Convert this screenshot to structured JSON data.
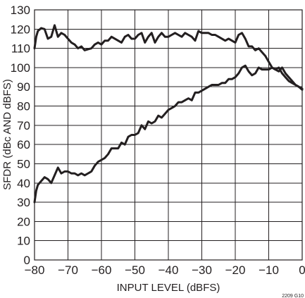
{
  "chart_data": {
    "type": "line",
    "title": "",
    "xlabel": "INPUT LEVEL (dBFS)",
    "ylabel": "SFDR (dBc AND  dBFS)",
    "xlim": [
      -80,
      0
    ],
    "ylim": [
      0,
      130
    ],
    "x_ticks": [
      -80,
      -70,
      -60,
      -50,
      -40,
      -30,
      -20,
      -10,
      0
    ],
    "x_tick_labels": [
      "−80",
      "−70",
      "−60",
      "−50",
      "−40",
      "−30",
      "−20",
      "−10",
      "0"
    ],
    "y_ticks": [
      0,
      10,
      20,
      30,
      40,
      50,
      60,
      70,
      80,
      90,
      100,
      110,
      120,
      130
    ],
    "y_tick_labels": [
      "0",
      "10",
      "20",
      "30",
      "40",
      "50",
      "60",
      "70",
      "80",
      "90",
      "100",
      "110",
      "120",
      "130"
    ],
    "grid": true,
    "line_color": "#231f20",
    "figure_id": "2209 G10",
    "series": [
      {
        "x": [
          -80,
          -79.5,
          -79,
          -78,
          -77,
          -76,
          -75,
          -74,
          -73,
          -72,
          -71,
          -70,
          -69,
          -68,
          -67,
          -66,
          -65,
          -64,
          -63,
          -62,
          -61,
          -60,
          -59,
          -58,
          -57,
          -56,
          -55,
          -54,
          -53,
          -52,
          -51,
          -50,
          -49,
          -48,
          -47,
          -46,
          -45,
          -44,
          -43,
          -42,
          -41,
          -40,
          -39,
          -38,
          -37,
          -36,
          -35,
          -34,
          -33,
          -32,
          -31,
          -30,
          -29,
          -28,
          -27,
          -26,
          -25,
          -24,
          -23,
          -22,
          -21,
          -20,
          -19,
          -18,
          -17,
          -16,
          -15,
          -14,
          -13,
          -12,
          -11,
          -10,
          -9,
          -8,
          -7,
          -6,
          -5,
          -4,
          -3,
          -2,
          -1,
          0
        ],
        "values": [
          110,
          116,
          119,
          120.5,
          120,
          115,
          116,
          122,
          116,
          118,
          117,
          115,
          113,
          112,
          110,
          111,
          109,
          109.5,
          110,
          112,
          113,
          112,
          114,
          114,
          116,
          115,
          114,
          113,
          116,
          117,
          115,
          115,
          117,
          118,
          113,
          116,
          118,
          113,
          116,
          118,
          116,
          116,
          117,
          118,
          117,
          116,
          118,
          117,
          116,
          114,
          119,
          118,
          118,
          118,
          117,
          117,
          116,
          115,
          114,
          115,
          114,
          113,
          117,
          118,
          115,
          111,
          111,
          109,
          110,
          108,
          106,
          103,
          100,
          99,
          98,
          100,
          97,
          95,
          93,
          91,
          90,
          88.5
        ]
      },
      {
        "x": [
          -80,
          -79.5,
          -79,
          -78,
          -77,
          -76,
          -75,
          -74,
          -73,
          -72,
          -71,
          -70,
          -69,
          -68,
          -67,
          -66,
          -65,
          -64,
          -63,
          -62,
          -61,
          -60,
          -59,
          -58,
          -57,
          -56,
          -55,
          -54,
          -53,
          -52,
          -51,
          -50,
          -49,
          -48,
          -47,
          -46,
          -45,
          -44,
          -43,
          -42,
          -41,
          -40,
          -39,
          -38,
          -37,
          -36,
          -35,
          -34,
          -33,
          -32,
          -31,
          -30,
          -29,
          -28,
          -27,
          -26,
          -25,
          -24,
          -23,
          -22,
          -21,
          -20,
          -19,
          -18,
          -17,
          -16,
          -15,
          -14,
          -13,
          -12,
          -11,
          -10,
          -9,
          -8,
          -7,
          -6,
          -5,
          -4,
          -3,
          -2,
          -1,
          0
        ],
        "values": [
          30,
          36,
          39,
          41,
          43,
          42,
          40,
          44,
          48,
          45,
          46,
          46,
          45,
          45,
          44,
          45,
          44,
          45,
          46,
          49,
          51,
          52,
          53,
          55,
          58,
          58,
          58,
          61,
          60,
          64,
          65,
          65,
          66,
          70,
          68,
          72,
          71,
          72,
          75,
          74,
          76,
          78,
          79,
          80,
          82,
          82,
          83,
          84,
          83,
          87,
          87,
          88,
          89,
          90,
          91,
          91,
          91,
          92,
          92,
          94,
          94,
          95,
          97,
          100,
          101,
          98,
          96,
          97,
          100,
          99,
          99,
          99,
          100,
          99,
          100,
          97,
          95,
          93,
          92,
          91,
          90,
          89
        ]
      }
    ]
  }
}
